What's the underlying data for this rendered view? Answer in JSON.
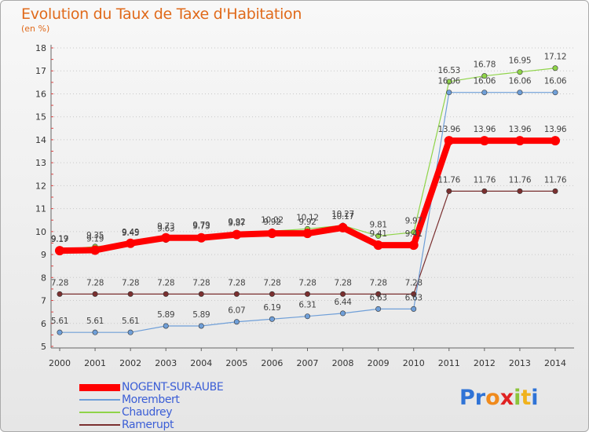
{
  "chart_data": {
    "type": "line",
    "title": "Evolution du Taux de Taxe d'Habitation",
    "subtitle": "(en %)",
    "x": [
      "2000",
      "2001",
      "2002",
      "2003",
      "2004",
      "2005",
      "2006",
      "2007",
      "2008",
      "2009",
      "2010",
      "2011",
      "2012",
      "2013",
      "2014"
    ],
    "ylim": [
      5,
      18
    ],
    "yticks": [
      5,
      6,
      7,
      8,
      9,
      10,
      11,
      12,
      13,
      14,
      15,
      16,
      17,
      18
    ],
    "grid": "horizontal dotted",
    "legend_position": "bottom-left",
    "series": [
      {
        "name": "NOGENT-SUR-AUBE",
        "color": "#ff0000",
        "values": [
          9.17,
          9.19,
          9.49,
          9.73,
          9.73,
          9.87,
          9.92,
          9.92,
          10.17,
          9.41,
          9.41,
          13.96,
          13.96,
          13.96,
          13.96
        ],
        "labels": [
          "9.17",
          "9.19",
          "9.49",
          "9.73",
          "9.73",
          "9.87",
          "9.92",
          "9.92",
          "10.17",
          "9.41",
          "9.41",
          "13.96",
          "13.96",
          "13.96",
          "13.96"
        ]
      },
      {
        "name": "Morembert",
        "color": "#6f9fd8",
        "values": [
          5.61,
          5.61,
          5.61,
          5.89,
          5.89,
          6.07,
          6.19,
          6.31,
          6.44,
          6.63,
          6.63,
          16.06,
          16.06,
          16.06,
          16.06
        ],
        "labels": [
          "5.61",
          "5.61",
          "5.61",
          "5.89",
          "5.89",
          "6.07",
          "6.19",
          "6.31",
          "6.44",
          "6.63",
          "6.63",
          "16.06",
          "16.06",
          "16.06",
          "16.06"
        ]
      },
      {
        "name": "Chaudrey",
        "color": "#8fd449",
        "values": [
          9.19,
          9.35,
          9.45,
          9.63,
          9.79,
          9.92,
          10.02,
          10.12,
          10.27,
          9.81,
          9.97,
          16.53,
          16.78,
          16.95,
          17.12
        ],
        "labels": [
          "9.19",
          "9.35",
          "9.45",
          "9.63",
          "9.79",
          "9.92",
          "10.02",
          "10.12",
          "10.27",
          "9.81",
          "9.97",
          "16.53",
          "16.78",
          "16.95",
          "17.12"
        ]
      },
      {
        "name": "Ramerupt",
        "color": "#7a2f2f",
        "values": [
          7.28,
          7.28,
          7.28,
          7.28,
          7.28,
          7.28,
          7.28,
          7.28,
          7.28,
          7.28,
          7.28,
          11.76,
          11.76,
          11.76,
          11.76
        ],
        "labels": [
          "7.28",
          "7.28",
          "7.28",
          "7.28",
          "7.28",
          "7.28",
          "7.28",
          "7.28",
          "7.28",
          "7.28",
          "7.28",
          "11.76",
          "11.76",
          "11.76",
          "11.76"
        ]
      }
    ]
  },
  "logo": {
    "text": "Proxiti",
    "letters": [
      "P",
      "r",
      "o",
      "x",
      "i",
      "t",
      "i"
    ],
    "colors": [
      "#2f73d6",
      "#2f73d6",
      "#f08a1c",
      "#e02222",
      "#8cc43a",
      "#f0b21c",
      "#2f73d6"
    ]
  }
}
